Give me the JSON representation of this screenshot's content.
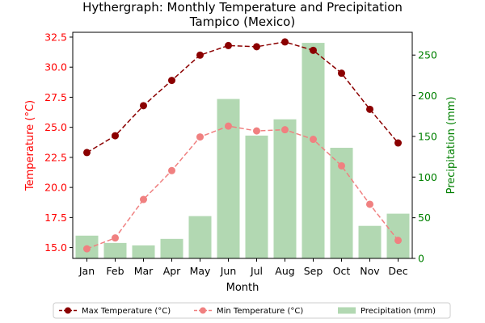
{
  "chart_data": {
    "type": "bar+line",
    "title_line1": "Hythergraph: Monthly Temperature and Precipitation",
    "title_line2": "Tampico (Mexico)",
    "xlabel": "Month",
    "ylabel_left": "Temperature (°C)",
    "ylabel_right": "Precipitation (mm)",
    "categories": [
      "Jan",
      "Feb",
      "Mar",
      "Apr",
      "May",
      "Jun",
      "Jul",
      "Aug",
      "Sep",
      "Oct",
      "Nov",
      "Dec"
    ],
    "temp_ylim": [
      14.1,
      32.9
    ],
    "temp_ticks": [
      "15.0",
      "17.5",
      "20.0",
      "22.5",
      "25.0",
      "27.5",
      "30.0",
      "32.5"
    ],
    "precip_ylim": [
      0,
      278
    ],
    "precip_ticks": [
      "0",
      "50",
      "100",
      "150",
      "200",
      "250"
    ],
    "series": [
      {
        "name": "Max Temperature (°C)",
        "kind": "line",
        "axis": "left",
        "color": "#8b0000",
        "style": "dashed",
        "values": [
          22.9,
          24.3,
          26.8,
          28.9,
          31.0,
          31.8,
          31.7,
          32.1,
          31.4,
          29.5,
          26.5,
          23.7
        ]
      },
      {
        "name": "Min Temperature (°C)",
        "kind": "line",
        "axis": "left",
        "color": "#f08080",
        "style": "dashed",
        "values": [
          14.9,
          15.8,
          19.0,
          21.4,
          24.2,
          25.1,
          24.7,
          24.8,
          24.0,
          21.8,
          18.6,
          15.6
        ]
      },
      {
        "name": "Precipitation (mm)",
        "kind": "bar",
        "axis": "right",
        "color": "#b2d8b2",
        "values": [
          28,
          19,
          16,
          24,
          52,
          196,
          151,
          171,
          265,
          136,
          40,
          55
        ]
      }
    ],
    "legend_position": "bottom-center",
    "grid": false,
    "colors": {
      "left_axis": "#ff0000",
      "right_axis": "#008000"
    }
  }
}
